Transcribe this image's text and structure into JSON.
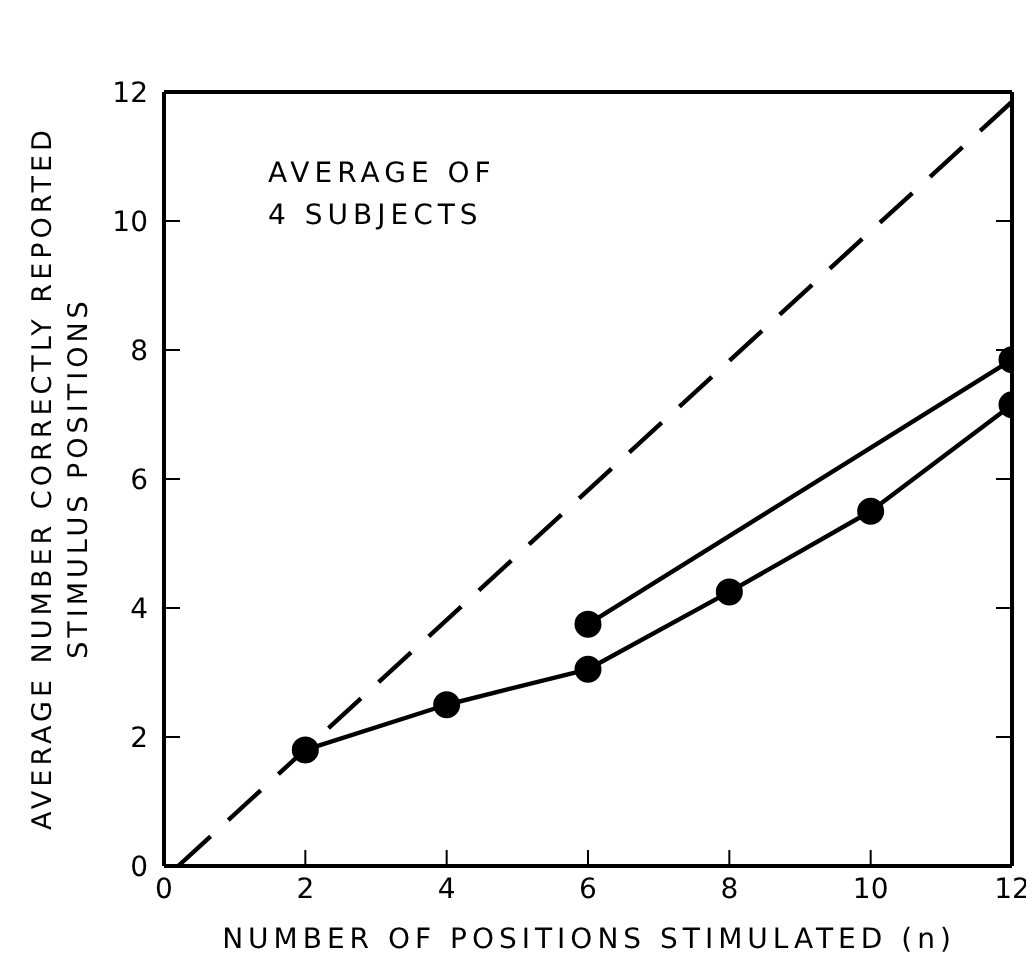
{
  "chart_data": {
    "type": "line",
    "xlabel": "NUMBER OF POSITIONS STIMULATED (n)",
    "ylabel": "AVERAGE NUMBER CORRECTLY REPORTED\nSTIMULUS POSITIONS",
    "annotations": [
      "AVERAGE OF\n4 SUBJECTS"
    ],
    "xlim": [
      0,
      12
    ],
    "xticks": [
      0,
      2,
      4,
      6,
      8,
      10,
      12
    ],
    "ylim": [
      0,
      12
    ],
    "yticks": [
      0,
      2,
      4,
      6,
      8,
      10,
      12
    ],
    "grid": false,
    "legend": false,
    "series": [
      {
        "color": "#000000",
        "x": [
          2,
          4,
          6,
          8,
          10,
          12
        ],
        "values": [
          1.8,
          2.5,
          3.05,
          4.25,
          5.5,
          7.15
        ],
        "marker": "circle",
        "line_style": "solid"
      },
      {
        "color": "#000000",
        "x": [
          6,
          12
        ],
        "values": [
          3.75,
          7.85
        ],
        "marker": "circle",
        "line_style": "solid"
      },
      {
        "color": "#000000",
        "x": [
          0.2,
          12
        ],
        "values": [
          0,
          11.85
        ],
        "marker": "none",
        "line_style": "dashed"
      }
    ]
  }
}
